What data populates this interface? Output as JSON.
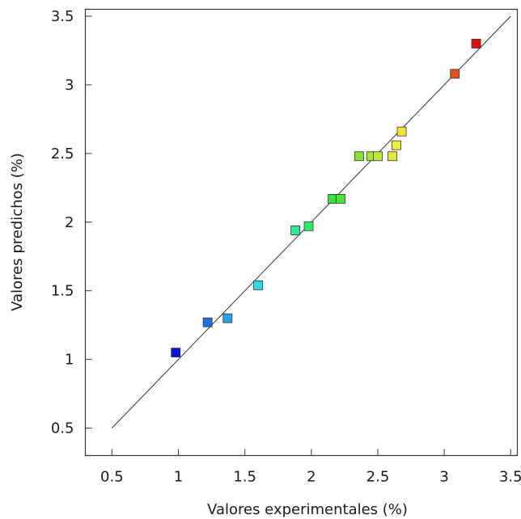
{
  "chart_data": {
    "type": "scatter",
    "title": "",
    "xlabel": "Valores experimentales (%)",
    "ylabel": "Valores predichos (%)",
    "xlim": [
      0.3,
      3.55
    ],
    "ylim": [
      0.3,
      3.55
    ],
    "xticks": [
      "0.5",
      "1",
      "1.5",
      "2",
      "2.5",
      "3",
      "3.5"
    ],
    "yticks": [
      "0.5",
      "1",
      "1.5",
      "2",
      "2.5",
      "3",
      "3.5"
    ],
    "grid": false,
    "reference_line": {
      "from": [
        0.5,
        0.5
      ],
      "to": [
        3.5,
        3.5
      ]
    },
    "points": [
      {
        "x": 0.98,
        "y": 1.05,
        "color": "#0a16d6"
      },
      {
        "x": 1.22,
        "y": 1.27,
        "color": "#1f6fe0"
      },
      {
        "x": 1.37,
        "y": 1.3,
        "color": "#2aa2e6"
      },
      {
        "x": 1.6,
        "y": 1.54,
        "color": "#34d9df"
      },
      {
        "x": 1.88,
        "y": 1.94,
        "color": "#30e890"
      },
      {
        "x": 1.98,
        "y": 1.97,
        "color": "#2ee86a"
      },
      {
        "x": 2.16,
        "y": 2.17,
        "color": "#3ae23a"
      },
      {
        "x": 2.22,
        "y": 2.17,
        "color": "#4be23a"
      },
      {
        "x": 2.36,
        "y": 2.48,
        "color": "#88e236"
      },
      {
        "x": 2.45,
        "y": 2.48,
        "color": "#a8e63a"
      },
      {
        "x": 2.5,
        "y": 2.48,
        "color": "#bde83a"
      },
      {
        "x": 2.61,
        "y": 2.48,
        "color": "#e0ec3a"
      },
      {
        "x": 2.64,
        "y": 2.56,
        "color": "#eaf03c"
      },
      {
        "x": 2.68,
        "y": 2.66,
        "color": "#f2e83a"
      },
      {
        "x": 3.08,
        "y": 3.08,
        "color": "#e2521c"
      },
      {
        "x": 3.24,
        "y": 3.3,
        "color": "#e00c0c"
      }
    ]
  }
}
